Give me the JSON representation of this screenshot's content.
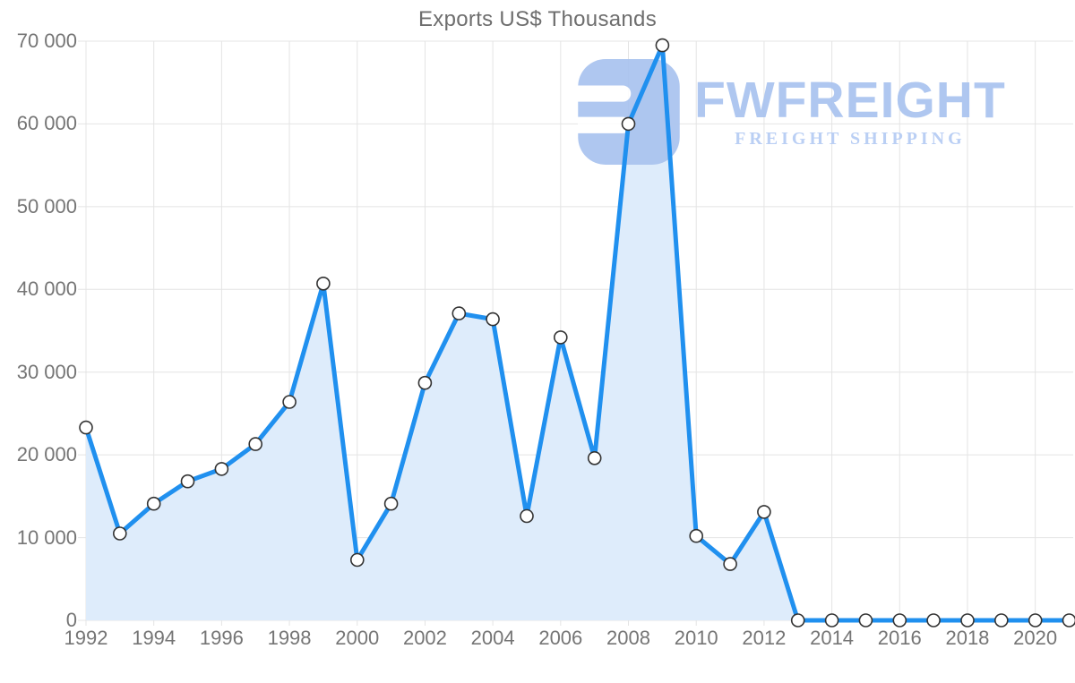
{
  "title": "Exports US$ Thousands",
  "watermark": {
    "brand": "FWFREIGHT",
    "tagline": "FREIGHT SHIPPING"
  },
  "colors": {
    "line": "#2090ef",
    "area_fill": "#deecfb",
    "grid": "#e4e4e4",
    "tick_text": "#757575",
    "title_text": "#6e6e6e",
    "marker_fill": "#ffffff",
    "marker_stroke": "#333333",
    "watermark_blue": "#a9c3ef"
  },
  "chart_data": {
    "type": "area",
    "title": "Exports US$ Thousands",
    "xlabel": "",
    "ylabel": "Exports US$ Thousands",
    "x": [
      1992,
      1993,
      1994,
      1995,
      1996,
      1997,
      1998,
      1999,
      2000,
      2001,
      2002,
      2003,
      2004,
      2005,
      2006,
      2007,
      2008,
      2009,
      2010,
      2011,
      2012,
      2013,
      2014,
      2015,
      2016,
      2017,
      2018,
      2019,
      2020,
      2021
    ],
    "values": [
      23300,
      10500,
      14100,
      16800,
      18300,
      21300,
      26400,
      40700,
      7300,
      14100,
      28700,
      37100,
      36400,
      12600,
      34200,
      19600,
      60000,
      69500,
      10200,
      6800,
      13100,
      0,
      0,
      0,
      0,
      0,
      0,
      0,
      0,
      0
    ],
    "ylim": [
      0,
      70000
    ],
    "ytick_step": 10000,
    "ytick_labels": [
      "0",
      "10 000",
      "20 000",
      "30 000",
      "40 000",
      "50 000",
      "60 000",
      "70 000"
    ],
    "xtick_labels": [
      "1992",
      "1994",
      "1996",
      "1998",
      "2000",
      "2002",
      "2004",
      "2006",
      "2008",
      "2010",
      "2012",
      "2014",
      "2016",
      "2018",
      "2020"
    ],
    "xtick_every": 2,
    "grid": true,
    "legend": false,
    "marker": "circle"
  }
}
